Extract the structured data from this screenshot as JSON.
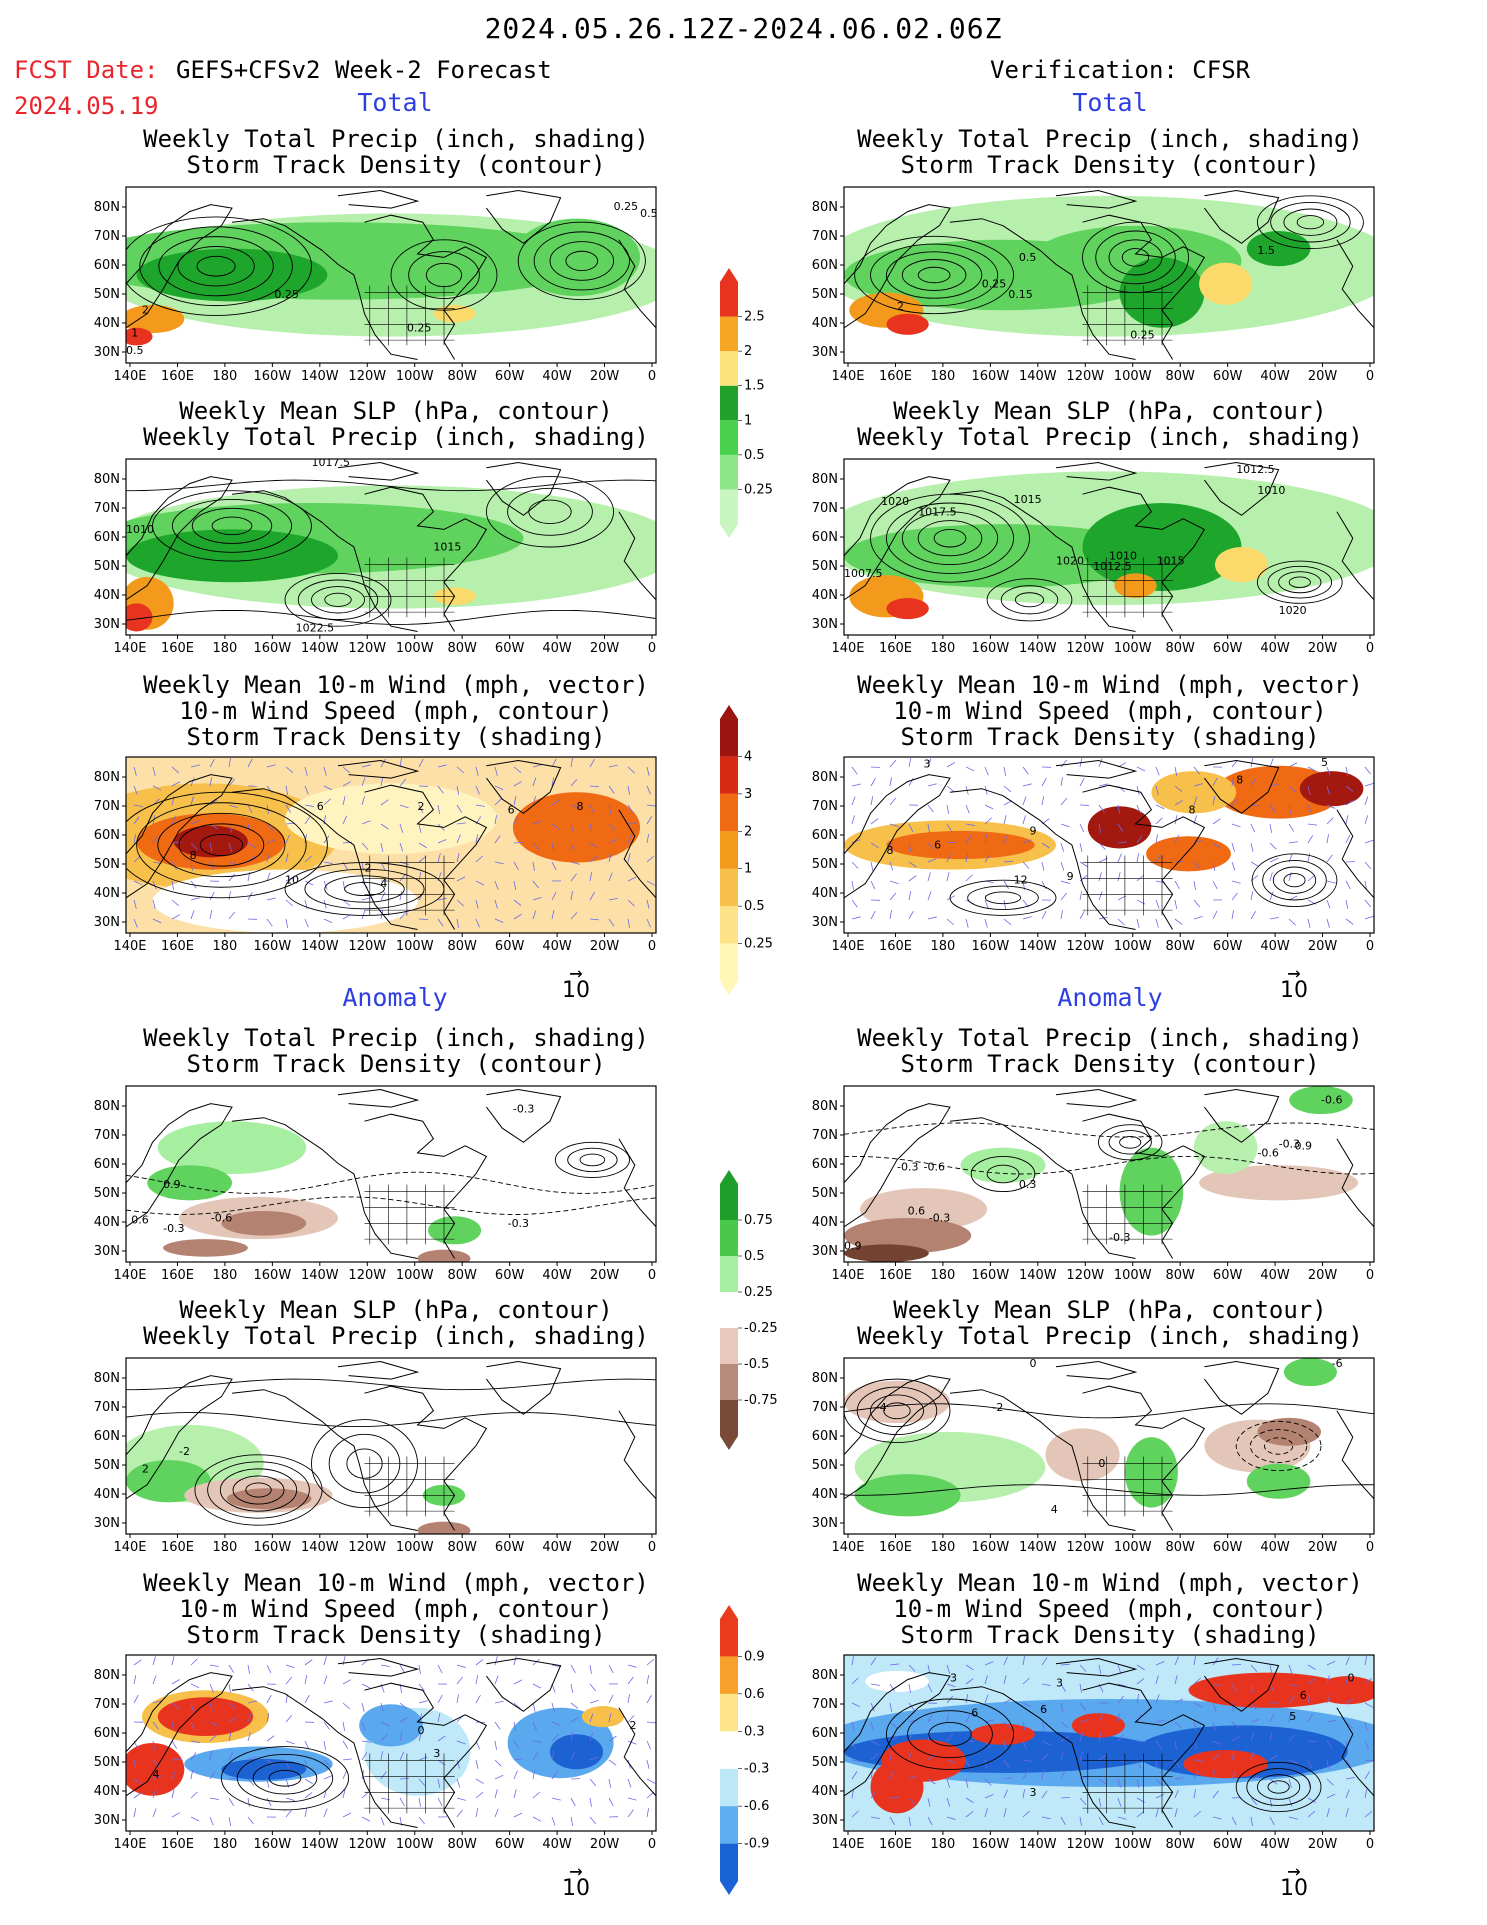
{
  "header": {
    "title": "2024.05.26.12Z-2024.06.02.06Z",
    "fcst_label": "FCST Date:",
    "fcst_model": "GEFS+CFSv2 Week-2 Forecast",
    "fcst_date": "2024.05.19",
    "verification": "Verification: CFSR"
  },
  "sections": {
    "total": "Total",
    "anomaly": "Anomaly"
  },
  "panel_titles": {
    "precip_storm": "Weekly Total Precip (inch, shading)\nStorm Track Density (contour)",
    "slp_precip": "Weekly Mean SLP (hPa, contour)\nWeekly Total Precip (inch, shading)",
    "wind_storm": "Weekly Mean 10-m Wind (mph, vector)\n10-m Wind Speed (mph, contour)\nStorm Track Density (shading)"
  },
  "axes": {
    "lat_labels": [
      "80N",
      "70N",
      "60N",
      "50N",
      "40N",
      "30N"
    ],
    "lon_labels": [
      "140E",
      "160E",
      "180",
      "160W",
      "140W",
      "120W",
      "100W",
      "80W",
      "60W",
      "40W",
      "20W",
      "0"
    ]
  },
  "vector_ref": "10",
  "colorbars": {
    "precip_total": {
      "labels": [
        "0.25",
        "0.5",
        "1",
        "1.5",
        "2",
        "2.5"
      ],
      "colors": [
        "#c8f5c0",
        "#8ee68a",
        "#49d14d",
        "#1fa12a",
        "#fbe27a",
        "#f6a623",
        "#e8331e"
      ]
    },
    "storm_total": {
      "labels": [
        "0.25",
        "0.5",
        "1",
        "2",
        "3",
        "4"
      ],
      "colors": [
        "#fff7b8",
        "#fde28a",
        "#f7c04a",
        "#f39a1c",
        "#ef6a12",
        "#d72b14",
        "#9b1410"
      ]
    },
    "precip_anom": {
      "labels": [
        "0.75",
        "0.5",
        "0.25",
        "-0.25",
        "-0.5",
        "-0.75"
      ],
      "colors": [
        "#1f9e2c",
        "#49c84c",
        "#a6eea0",
        "#ffffff",
        "#e8c8bc",
        "#b88c7c",
        "#7a4a38"
      ]
    },
    "storm_anom": {
      "labels": [
        "0.9",
        "0.6",
        "0.3",
        "-0.3",
        "-0.6",
        "-0.9"
      ],
      "colors": [
        "#ea3b1c",
        "#f7a02a",
        "#fde38a",
        "#ffffff",
        "#bde8f8",
        "#5faef0",
        "#1a63d6"
      ]
    }
  },
  "contour_labels": {
    "L1": [
      "0.25",
      "0.5",
      "0.25",
      "0.25",
      "2",
      "1",
      "0.5"
    ],
    "R1": [
      "2",
      "0.25",
      "0.15",
      "0.5",
      "1.5",
      "0.25"
    ],
    "L2": [
      "1017.5",
      "1010",
      "1015",
      "1022.5"
    ],
    "R2": [
      "1012.5",
      "1010",
      "1020",
      "1017.5",
      "1015",
      "1020",
      "1012.5",
      "1010",
      "1015",
      "1007.5",
      "1020"
    ],
    "L3": [
      "8",
      "8",
      "10",
      "2",
      "2",
      "6",
      "6",
      "4"
    ],
    "R3": [
      "8",
      "6",
      "8",
      "9",
      "12",
      "9",
      "8",
      "5",
      "3"
    ],
    "L4": [
      "0.9",
      "0.6",
      "-0.3",
      "-0.6",
      "-0.3",
      "-0.3"
    ],
    "R4": [
      "-0.6",
      "0.9",
      "-0.3",
      "-0.6",
      "0.3",
      "0.6",
      "-0.3",
      "-0.6",
      "-0.3",
      "0.9",
      "-0.3"
    ],
    "L5": [
      "2",
      "-2"
    ],
    "R5": [
      "0",
      "-2",
      "-6",
      "4",
      "-4",
      "0"
    ],
    "L6": [
      "4",
      "0",
      "2",
      "3"
    ],
    "R6": [
      "3",
      "3",
      "6",
      "6",
      "5",
      "6",
      "0",
      "3"
    ]
  }
}
